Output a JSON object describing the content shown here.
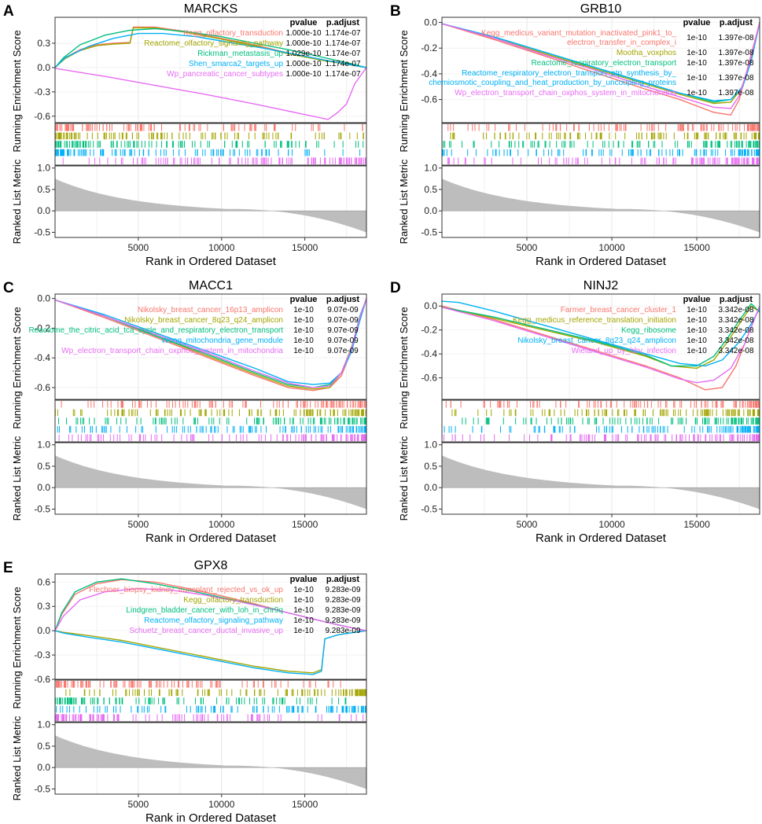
{
  "figure": {
    "common": {
      "es_ylabel": "Running Enrichment Score",
      "rl_ylabel": "Ranked List Metric",
      "xlabel": "Rank in Ordered Dataset",
      "x_ticks": [
        5000,
        10000,
        15000
      ],
      "rl_ticks": [
        1.0,
        0.5,
        0.0,
        -0.5
      ],
      "rl_tick_labels": [
        "1.0",
        "0.5",
        "0.0",
        "-0.5"
      ],
      "n_genes": 18700,
      "pvalue_header": "pvalue",
      "padj_header": "p.adjust"
    },
    "colors": [
      "#F8766D",
      "#A3A500",
      "#00BF7D",
      "#00B0F6",
      "#E76BF3"
    ]
  },
  "chart_data": [
    {
      "type": "line",
      "panel_letter": "A",
      "title": "MARCKS",
      "ylim": [
        -0.68,
        0.62
      ],
      "y_ticks": [
        0.3,
        0.0,
        -0.3,
        -0.6
      ],
      "y_tick_labels": [
        "0.3",
        "0.0",
        "-0.3",
        "-0.6"
      ],
      "series": [
        {
          "name": "Kegg_olfactory_transduction",
          "pvalue": "1.000e-10",
          "padj": "1.174e-07",
          "color": "#F8766D",
          "x": [
            0,
            600,
            1500,
            2500,
            3500,
            4500,
            4700,
            6000,
            8000,
            10000,
            12000,
            14000,
            16000,
            18700
          ],
          "y": [
            0.0,
            0.12,
            0.22,
            0.28,
            0.3,
            0.31,
            0.5,
            0.5,
            0.44,
            0.36,
            0.28,
            0.18,
            0.1,
            0.0
          ]
        },
        {
          "name": "Reactome_olfactory_signaling_pathway",
          "pvalue": "1.000e-10",
          "padj": "1.174e-07",
          "color": "#A3A500",
          "x": [
            0,
            600,
            1500,
            2500,
            3500,
            4500,
            4700,
            6000,
            8000,
            10000,
            12000,
            14000,
            16000,
            18700
          ],
          "y": [
            0.0,
            0.11,
            0.21,
            0.27,
            0.29,
            0.3,
            0.49,
            0.49,
            0.43,
            0.35,
            0.27,
            0.17,
            0.09,
            0.0
          ]
        },
        {
          "name": "Rickman_metastasis_up",
          "pvalue": "1.029e-10",
          "padj": "1.174e-07",
          "color": "#00BF7D",
          "x": [
            0,
            500,
            1500,
            3000,
            4500,
            6000,
            8000,
            10000,
            12000,
            14000,
            16000,
            17500,
            18700
          ],
          "y": [
            0.0,
            0.12,
            0.28,
            0.4,
            0.46,
            0.48,
            0.44,
            0.38,
            0.3,
            0.22,
            0.13,
            0.06,
            0.0
          ]
        },
        {
          "name": "Shen_smarca2_targets_up",
          "pvalue": "1.000e-10",
          "padj": "1.174e-07",
          "color": "#00B0F6",
          "x": [
            0,
            600,
            2000,
            3500,
            5000,
            6500,
            8500,
            10500,
            12500,
            14500,
            16500,
            18700
          ],
          "y": [
            0.0,
            0.12,
            0.26,
            0.36,
            0.42,
            0.42,
            0.38,
            0.31,
            0.24,
            0.16,
            0.08,
            0.0
          ]
        },
        {
          "name": "Wp_pancreatic_cancer_subtypes",
          "pvalue": "1.000e-10",
          "padj": "1.174e-07",
          "color": "#E76BF3",
          "x": [
            0,
            3000,
            6000,
            9000,
            12000,
            15000,
            16400,
            17000,
            17500,
            18000,
            18700
          ],
          "y": [
            -0.01,
            -0.11,
            -0.22,
            -0.33,
            -0.45,
            -0.58,
            -0.64,
            -0.55,
            -0.45,
            -0.2,
            0.0
          ]
        }
      ]
    },
    {
      "type": "line",
      "panel_letter": "B",
      "title": "GRB10",
      "ylim": [
        -0.78,
        0.04
      ],
      "y_ticks": [
        0.0,
        -0.2,
        -0.4,
        -0.6
      ],
      "y_tick_labels": [
        "0.0",
        "-0.2",
        "-0.4",
        "-0.6"
      ],
      "series": [
        {
          "name": "Kegg_medicus_variant_mutation_inactivated_pink1_to_ electron_transfer_in_complex_i",
          "pvalue": "1e-10",
          "padj": "1.397e-08",
          "color": "#F8766D",
          "x": [
            0,
            3000,
            6000,
            9000,
            12000,
            14000,
            16000,
            17000,
            17500,
            18000,
            18700
          ],
          "y": [
            -0.01,
            -0.13,
            -0.26,
            -0.39,
            -0.52,
            -0.6,
            -0.7,
            -0.72,
            -0.6,
            -0.35,
            0.0
          ]
        },
        {
          "name": "Mootha_voxphos",
          "pvalue": "1e-10",
          "padj": "1.397e-08",
          "color": "#A3A500",
          "x": [
            0,
            3000,
            6000,
            9000,
            12000,
            14000,
            16000,
            17000,
            17600,
            18200,
            18700
          ],
          "y": [
            -0.01,
            -0.12,
            -0.24,
            -0.36,
            -0.48,
            -0.56,
            -0.63,
            -0.62,
            -0.52,
            -0.3,
            0.0
          ]
        },
        {
          "name": "Reactome_respiratory_electron_transport",
          "pvalue": "1e-10",
          "padj": "1.397e-08",
          "color": "#00BF7D",
          "x": [
            0,
            3000,
            6000,
            9000,
            12000,
            14000,
            16000,
            17000,
            17700,
            18200,
            18700
          ],
          "y": [
            -0.01,
            -0.11,
            -0.23,
            -0.35,
            -0.47,
            -0.55,
            -0.62,
            -0.6,
            -0.5,
            -0.3,
            0.0
          ]
        },
        {
          "name": "Reactome_respiratory_electron_transport_atp_synthesis_by_ chemiosmotic_coupling_and_heat_production_by_uncoupling_proteins",
          "pvalue": "1e-10",
          "padj": "1.397e-08",
          "color": "#00B0F6",
          "x": [
            0,
            3000,
            6000,
            9000,
            12000,
            14000,
            16000,
            17000,
            17700,
            18200,
            18700
          ],
          "y": [
            -0.01,
            -0.11,
            -0.23,
            -0.35,
            -0.47,
            -0.55,
            -0.61,
            -0.6,
            -0.5,
            -0.3,
            0.0
          ]
        },
        {
          "name": "Wp_electron_transport_chain_oxphos_system_in_mitochondria",
          "pvalue": "1e-10",
          "padj": "1.397e-08",
          "color": "#E76BF3",
          "x": [
            0,
            3000,
            6000,
            9000,
            12000,
            14000,
            16000,
            17000,
            17500,
            18100,
            18700
          ],
          "y": [
            -0.01,
            -0.12,
            -0.25,
            -0.37,
            -0.5,
            -0.58,
            -0.66,
            -0.67,
            -0.57,
            -0.32,
            0.0
          ]
        }
      ]
    },
    {
      "type": "line",
      "panel_letter": "C",
      "title": "MACC1",
      "ylim": [
        -0.68,
        0.03
      ],
      "y_ticks": [
        0.0,
        -0.2,
        -0.4,
        -0.6
      ],
      "y_tick_labels": [
        "0.0",
        "-0.2",
        "-0.4",
        "-0.6"
      ],
      "series": [
        {
          "name": "Nikolsky_breast_cancer_16p13_amplicon",
          "pvalue": "1e-10",
          "padj": "9.07e-09",
          "color": "#F8766D",
          "x": [
            0,
            3000,
            6000,
            9000,
            12000,
            14000,
            15500,
            16500,
            17200,
            17800,
            18300,
            18700
          ],
          "y": [
            -0.01,
            -0.13,
            -0.26,
            -0.39,
            -0.52,
            -0.6,
            -0.62,
            -0.6,
            -0.52,
            -0.35,
            -0.15,
            0.0
          ]
        },
        {
          "name": "Nikolsky_breast_cancer_8q23_q24_amplicon",
          "pvalue": "1e-10",
          "padj": "9.07e-09",
          "color": "#A3A500",
          "x": [
            0,
            3000,
            6000,
            9000,
            12000,
            14000,
            15500,
            16500,
            17200,
            17800,
            18300,
            18700
          ],
          "y": [
            -0.01,
            -0.12,
            -0.25,
            -0.38,
            -0.51,
            -0.59,
            -0.61,
            -0.6,
            -0.5,
            -0.33,
            -0.14,
            0.0
          ]
        },
        {
          "name": "Reactome_the_citric_acid_tca_cycle_and_respiratory_electron_transport",
          "pvalue": "1e-10",
          "padj": "9.07e-09",
          "color": "#00BF7D",
          "x": [
            0,
            3000,
            6000,
            9000,
            12000,
            14000,
            15500,
            16500,
            17200,
            17800,
            18300,
            18700
          ],
          "y": [
            -0.01,
            -0.12,
            -0.25,
            -0.37,
            -0.5,
            -0.58,
            -0.6,
            -0.58,
            -0.5,
            -0.34,
            -0.12,
            0.0
          ]
        },
        {
          "name": "Wong_mitochondria_gene_module",
          "pvalue": "1e-10",
          "padj": "9.07e-09",
          "color": "#00B0F6",
          "x": [
            0,
            3000,
            6000,
            9000,
            12000,
            14000,
            15500,
            16500,
            17200,
            17800,
            18300,
            18700
          ],
          "y": [
            -0.01,
            -0.11,
            -0.23,
            -0.35,
            -0.47,
            -0.56,
            -0.58,
            -0.57,
            -0.5,
            -0.36,
            -0.15,
            0.0
          ]
        },
        {
          "name": "Wp_electron_transport_chain_oxphos_system_in_mitochondria",
          "pvalue": "1e-10",
          "padj": "9.07e-09",
          "color": "#E76BF3",
          "x": [
            0,
            3000,
            6000,
            9000,
            12000,
            14000,
            15500,
            16500,
            17200,
            17800,
            18300,
            18700
          ],
          "y": [
            -0.01,
            -0.12,
            -0.24,
            -0.36,
            -0.49,
            -0.57,
            -0.6,
            -0.59,
            -0.5,
            -0.34,
            -0.13,
            0.0
          ]
        }
      ]
    },
    {
      "type": "line",
      "panel_letter": "D",
      "title": "NINJ2",
      "ylim": [
        -0.78,
        0.1
      ],
      "y_ticks": [
        0.0,
        -0.2,
        -0.4,
        -0.6
      ],
      "y_tick_labels": [
        "0.0",
        "-0.2",
        "-0.4",
        "-0.6"
      ],
      "series": [
        {
          "name": "Farmer_breast_cancer_cluster_1",
          "pvalue": "1e-10",
          "padj": "3.342e-08",
          "color": "#F8766D",
          "x": [
            0,
            3000,
            6000,
            9000,
            12000,
            14000,
            15500,
            16500,
            17300,
            18000,
            18700
          ],
          "y": [
            0.0,
            -0.11,
            -0.24,
            -0.37,
            -0.5,
            -0.6,
            -0.7,
            -0.68,
            -0.5,
            -0.25,
            0.0
          ]
        },
        {
          "name": "Kegg_medicus_reference_translation_initiation",
          "pvalue": "1e-10",
          "padj": "3.342e-08",
          "color": "#A3A500",
          "x": [
            0,
            3000,
            6000,
            9000,
            12000,
            13500,
            15000,
            16000,
            16800,
            17500,
            18200,
            18700
          ],
          "y": [
            -0.01,
            -0.1,
            -0.2,
            -0.3,
            -0.42,
            -0.5,
            -0.52,
            -0.45,
            -0.3,
            -0.15,
            0.0,
            -0.05
          ]
        },
        {
          "name": "Kegg_ribosome",
          "pvalue": "1e-10",
          "padj": "3.342e-08",
          "color": "#00BF7D",
          "x": [
            0,
            3000,
            6000,
            9000,
            12000,
            13500,
            15000,
            16000,
            16800,
            17500,
            18200,
            18700
          ],
          "y": [
            -0.01,
            -0.09,
            -0.19,
            -0.29,
            -0.41,
            -0.5,
            -0.5,
            -0.42,
            -0.27,
            -0.12,
            0.02,
            -0.05
          ]
        },
        {
          "name": "Nikolsky_breast_cancer_8q23_q24_amplicon",
          "pvalue": "1e-10",
          "padj": "3.342e-08",
          "color": "#00B0F6",
          "x": [
            0,
            1000,
            3000,
            6000,
            9000,
            12000,
            14000,
            15500,
            16500,
            17500,
            18200,
            18700
          ],
          "y": [
            0.04,
            0.03,
            -0.04,
            -0.16,
            -0.28,
            -0.4,
            -0.48,
            -0.5,
            -0.45,
            -0.3,
            -0.15,
            -0.02
          ]
        },
        {
          "name": "Wieland_up_by_hbv_infection",
          "pvalue": "1e-10",
          "padj": "3.342e-08",
          "color": "#E76BF3",
          "x": [
            0,
            3000,
            6000,
            9000,
            12000,
            14000,
            15000,
            16000,
            17000,
            17800,
            18700
          ],
          "y": [
            -0.01,
            -0.12,
            -0.25,
            -0.38,
            -0.51,
            -0.61,
            -0.64,
            -0.62,
            -0.52,
            -0.32,
            0.0
          ]
        }
      ]
    },
    {
      "type": "line",
      "panel_letter": "E",
      "title": "GPX8",
      "ylim": [
        -0.6,
        0.7
      ],
      "y_ticks": [
        0.6,
        0.3,
        0.0,
        -0.3,
        -0.6
      ],
      "y_tick_labels": [
        "0.6",
        "0.3",
        "0.0",
        "-0.3",
        "-0.6"
      ],
      "series": [
        {
          "name": "Flechner_biopsy_kidney_transplant_rejected_vs_ok_up",
          "pvalue": "1e-10",
          "padj": "9.283e-09",
          "color": "#F8766D",
          "x": [
            0,
            400,
            1200,
            2500,
            4000,
            6000,
            8000,
            10000,
            12000,
            14000,
            16000,
            17500,
            18700
          ],
          "y": [
            0.0,
            0.2,
            0.45,
            0.58,
            0.63,
            0.6,
            0.52,
            0.43,
            0.33,
            0.22,
            0.12,
            0.05,
            0.0
          ]
        },
        {
          "name": "Kegg_olfactory_transduction",
          "pvalue": "1e-10",
          "padj": "9.283e-09",
          "color": "#A3A500",
          "x": [
            0,
            500,
            2000,
            4000,
            6000,
            8000,
            10000,
            12000,
            14000,
            15500,
            16000,
            16200,
            17000,
            18000,
            18700
          ],
          "y": [
            0.0,
            -0.02,
            -0.06,
            -0.12,
            -0.2,
            -0.28,
            -0.36,
            -0.44,
            -0.5,
            -0.52,
            -0.48,
            -0.1,
            -0.05,
            -0.02,
            0.0
          ]
        },
        {
          "name": "Lindgren_bladder_cancer_with_loh_in_chr9q",
          "pvalue": "1e-10",
          "padj": "9.283e-09",
          "color": "#00BF7D",
          "x": [
            0,
            400,
            1200,
            2500,
            4000,
            6000,
            8000,
            10000,
            12000,
            14000,
            16000,
            17500,
            18700
          ],
          "y": [
            0.0,
            0.22,
            0.48,
            0.6,
            0.64,
            0.58,
            0.5,
            0.41,
            0.32,
            0.22,
            0.12,
            0.05,
            0.0
          ]
        },
        {
          "name": "Reactome_olfactory_signaling_pathway",
          "pvalue": "1e-10",
          "padj": "9.283e-09",
          "color": "#00B0F6",
          "x": [
            0,
            500,
            2000,
            4000,
            6000,
            8000,
            10000,
            12000,
            14000,
            15500,
            16000,
            16200,
            17000,
            18000,
            18700
          ],
          "y": [
            0.0,
            -0.03,
            -0.08,
            -0.14,
            -0.22,
            -0.3,
            -0.38,
            -0.46,
            -0.52,
            -0.54,
            -0.5,
            -0.1,
            -0.05,
            -0.02,
            0.0
          ]
        },
        {
          "name": "Schuetz_breast_cancer_ductal_invasive_up",
          "pvalue": "1e-10",
          "padj": "9.283e-09",
          "color": "#E76BF3",
          "x": [
            0,
            500,
            1500,
            3000,
            5000,
            7000,
            9000,
            11000,
            13000,
            15000,
            17000,
            18700
          ],
          "y": [
            0.0,
            0.18,
            0.38,
            0.48,
            0.52,
            0.5,
            0.44,
            0.36,
            0.27,
            0.17,
            0.07,
            0.0
          ]
        }
      ]
    }
  ]
}
